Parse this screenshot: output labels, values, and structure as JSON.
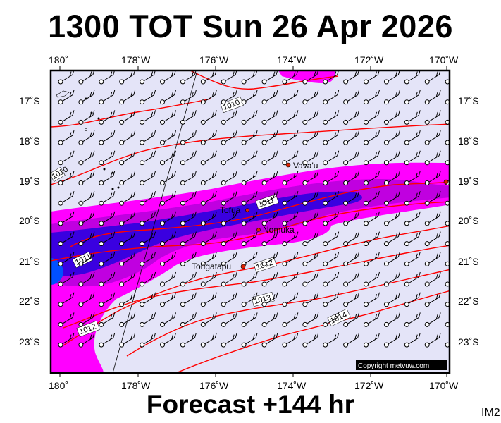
{
  "title": "1300 TOT Sun 26 Apr 2026",
  "footer": "Forecast +144 hr",
  "corner_label": "IM2",
  "copyright": "Copyright metvuw.com",
  "lon_labels": [
    "180˚",
    "178˚W",
    "176˚W",
    "174˚W",
    "172˚W",
    "170˚W"
  ],
  "lat_labels": [
    "17˚S",
    "18˚S",
    "19˚S",
    "20˚S",
    "21˚S",
    "22˚S",
    "23˚S"
  ],
  "isobar_labels": [
    "1010",
    "1010",
    "1011",
    "1011",
    "1012",
    "1013",
    "1014",
    "1012"
  ],
  "places": [
    "Vava'u",
    "Tofua",
    "Nomuka",
    "Tongatapu"
  ],
  "colors": {
    "background": "#e4e4f8",
    "rain_light": "#ff00ff",
    "rain_mid": "#c000e0",
    "rain_heavy": "#3a00e0",
    "rain_extreme": "#0050ff",
    "isobar": "#ff0000",
    "place_marker": "#dd2200"
  }
}
